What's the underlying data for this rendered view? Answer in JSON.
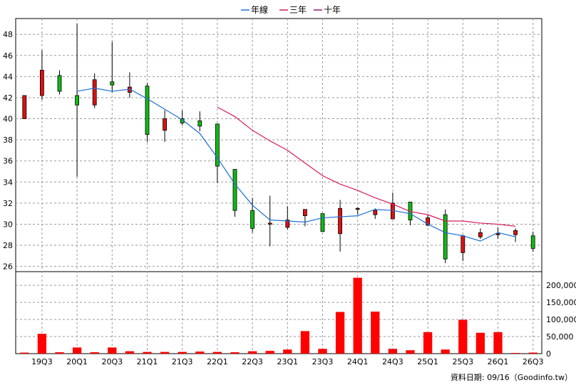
{
  "legend": [
    {
      "label": "年線",
      "color": "#1f6fd6"
    },
    {
      "label": "三年",
      "color": "#d81b60"
    },
    {
      "label": "十年",
      "color": "#8e1b7a"
    }
  ],
  "footer": "資料日期: 09/16（Goodinfo.tw）",
  "colors": {
    "up": "#dd1111",
    "down": "#11bb11",
    "volume": "#ff0000",
    "grid": "#9a9a9a"
  },
  "chart_data": {
    "type": "candlestick",
    "quarters": [
      "19Q2",
      "19Q3",
      "19Q4",
      "20Q1",
      "20Q2",
      "20Q3",
      "20Q4",
      "21Q1",
      "21Q2",
      "21Q3",
      "21Q4",
      "22Q1",
      "22Q2",
      "22Q3",
      "22Q4",
      "23Q1",
      "23Q2",
      "23Q3",
      "23Q4",
      "24Q1",
      "24Q2",
      "24Q3",
      "24Q4",
      "25Q1",
      "25Q2",
      "25Q3",
      "25Q4",
      "26Q1",
      "26Q2",
      "26Q3"
    ],
    "x_tick_labels": [
      "19Q3",
      "20Q1",
      "20Q3",
      "21Q1",
      "21Q3",
      "22Q1",
      "22Q3",
      "23Q1",
      "23Q3",
      "24Q1",
      "24Q3",
      "25Q1",
      "25Q3",
      "26Q1",
      "26Q3"
    ],
    "price_ylim": [
      25.5,
      49.5
    ],
    "price_ticks": [
      26,
      28,
      30,
      32,
      34,
      36,
      38,
      40,
      42,
      44,
      46,
      48
    ],
    "ohlc": [
      {
        "o": 40.0,
        "h": 42.2,
        "l": 40.0,
        "c": 42.2
      },
      {
        "o": 42.2,
        "h": 46.5,
        "l": 41.8,
        "c": 44.6
      },
      {
        "o": 44.1,
        "h": 44.6,
        "l": 42.3,
        "c": 42.6
      },
      {
        "o": 42.2,
        "h": 49.0,
        "l": 34.5,
        "c": 41.3
      },
      {
        "o": 41.3,
        "h": 44.3,
        "l": 41.0,
        "c": 43.7
      },
      {
        "o": 43.5,
        "h": 47.3,
        "l": 42.5,
        "c": 43.2
      },
      {
        "o": 42.5,
        "h": 44.4,
        "l": 42.0,
        "c": 43.0
      },
      {
        "o": 43.1,
        "h": 43.4,
        "l": 37.8,
        "c": 38.5
      },
      {
        "o": 38.9,
        "h": 40.8,
        "l": 37.8,
        "c": 40.0
      },
      {
        "o": 40.0,
        "h": 40.8,
        "l": 39.4,
        "c": 39.6
      },
      {
        "o": 39.8,
        "h": 40.7,
        "l": 38.8,
        "c": 39.3
      },
      {
        "o": 39.5,
        "h": 39.5,
        "l": 33.9,
        "c": 35.5
      },
      {
        "o": 35.2,
        "h": 35.2,
        "l": 30.7,
        "c": 31.3
      },
      {
        "o": 31.3,
        "h": 32.5,
        "l": 29.2,
        "c": 29.6
      },
      {
        "o": 30.0,
        "h": 32.7,
        "l": 27.9,
        "c": 30.1
      },
      {
        "o": 29.7,
        "h": 31.7,
        "l": 29.5,
        "c": 30.4
      },
      {
        "o": 30.8,
        "h": 31.4,
        "l": 29.8,
        "c": 31.4
      },
      {
        "o": 31.0,
        "h": 31.0,
        "l": 29.3,
        "c": 29.3
      },
      {
        "o": 29.1,
        "h": 32.3,
        "l": 27.4,
        "c": 31.5
      },
      {
        "o": 31.4,
        "h": 31.6,
        "l": 30.9,
        "c": 31.5
      },
      {
        "o": 30.9,
        "h": 31.5,
        "l": 30.5,
        "c": 31.3
      },
      {
        "o": 30.5,
        "h": 33.0,
        "l": 30.5,
        "c": 32.0
      },
      {
        "o": 32.1,
        "h": 32.1,
        "l": 29.9,
        "c": 30.4
      },
      {
        "o": 29.9,
        "h": 30.9,
        "l": 29.8,
        "c": 30.6
      },
      {
        "o": 30.9,
        "h": 31.4,
        "l": 26.3,
        "c": 26.7
      },
      {
        "o": 27.3,
        "h": 29.0,
        "l": 26.5,
        "c": 28.9
      },
      {
        "o": 28.8,
        "h": 29.6,
        "l": 28.6,
        "c": 29.2
      },
      {
        "o": 29.1,
        "h": 29.7,
        "l": 28.6,
        "c": 29.1
      },
      {
        "o": 29.0,
        "h": 29.6,
        "l": 28.3,
        "c": 29.4
      },
      {
        "o": 28.9,
        "h": 29.3,
        "l": 27.4,
        "c": 27.7
      }
    ],
    "year_line": {
      "from_index": 3,
      "values": [
        42.6,
        42.9,
        42.6,
        42.8,
        41.9,
        40.9,
        39.9,
        38.6,
        36.3,
        33.8,
        31.8,
        30.4,
        30.3,
        30.2,
        30.6,
        30.7,
        30.8,
        31.4,
        31.3,
        31.0,
        30.0,
        29.2,
        28.9,
        28.4,
        29.2,
        28.8
      ]
    },
    "three_year_line": {
      "from_index": 11,
      "values": [
        41.1,
        40.2,
        38.9,
        37.9,
        37.0,
        35.8,
        34.6,
        33.8,
        33.2,
        32.5,
        31.9,
        31.2,
        30.9,
        30.3,
        30.3,
        30.1,
        30.0,
        29.8
      ]
    },
    "volume_ylim": [
      0,
      240000
    ],
    "volume_ticks": [
      0,
      50000,
      100000,
      150000,
      200000
    ],
    "volume_tick_labels": [
      "0",
      "50,000",
      "100,000",
      "150,000",
      "200,000"
    ],
    "volume": [
      3000,
      58000,
      4000,
      18000,
      4000,
      18000,
      7000,
      5000,
      5000,
      5000,
      6000,
      5000,
      4000,
      7000,
      8000,
      12000,
      66000,
      14000,
      122000,
      222000,
      123000,
      14000,
      10000,
      63000,
      12000,
      99000,
      61000,
      63000,
      2000,
      3000
    ]
  }
}
